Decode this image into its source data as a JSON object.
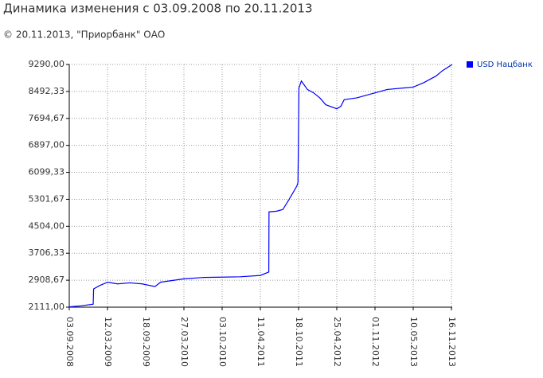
{
  "chart_data": {
    "type": "line",
    "title": "Динамика изменения с 03.09.2008 по 20.11.2013",
    "subtitle": "© 20.11.2013, \"Приорбанк\" ОАО",
    "x": [
      "03.09.2008",
      "01.11.2008",
      "31.12.2008",
      "02.01.2009",
      "01.02.2009",
      "12.03.2009",
      "01.05.2009",
      "01.07.2009",
      "01.09.2009",
      "03.11.2009",
      "01.12.2009",
      "27.03.2010",
      "01.07.2010",
      "03.10.2010",
      "01.01.2011",
      "11.04.2011",
      "23.05.2011",
      "24.05.2011",
      "01.07.2011",
      "01.08.2011",
      "01.09.2011",
      "10.10.2011",
      "15.10.2011",
      "20.10.2011",
      "01.11.2011",
      "01.12.2011",
      "01.01.2012",
      "01.02.2012",
      "01.03.2012",
      "25.04.2012",
      "15.05.2012",
      "01.06.2012",
      "01.08.2012",
      "01.11.2012",
      "01.01.2013",
      "10.05.2013",
      "01.07.2013",
      "01.09.2013",
      "01.10.2013",
      "20.11.2013"
    ],
    "series": [
      {
        "name": "USD Нацбанк",
        "color": "#0000ff",
        "values": [
          2120,
          2150,
          2200,
          2650,
          2750,
          2850,
          2800,
          2830,
          2800,
          2720,
          2850,
          2950,
          2990,
          3000,
          3010,
          3050,
          3150,
          4930,
          4950,
          5000,
          5300,
          5700,
          5800,
          8600,
          8800,
          8550,
          8450,
          8300,
          8100,
          7980,
          8050,
          8250,
          8300,
          8450,
          8550,
          8620,
          8750,
          8950,
          9100,
          9290
        ]
      }
    ],
    "xlim": [
      "03.09.2008",
      "20.11.2013"
    ],
    "xticks": [
      "03.09.2008",
      "12.03.2009",
      "18.09.2009",
      "27.03.2010",
      "03.10.2010",
      "11.04.2011",
      "18.10.2011",
      "25.04.2012",
      "01.11.2012",
      "10.05.2013",
      "16.11.2013"
    ],
    "ylim": [
      2111,
      9290
    ],
    "yticks": [
      {
        "value": 2111,
        "label": "2111,00"
      },
      {
        "value": 2908.67,
        "label": "2908,67"
      },
      {
        "value": 3706.33,
        "label": "3706,33"
      },
      {
        "value": 4504,
        "label": "4504,00"
      },
      {
        "value": 5301.67,
        "label": "5301,67"
      },
      {
        "value": 6099.33,
        "label": "6099,33"
      },
      {
        "value": 6897,
        "label": "6897,00"
      },
      {
        "value": 7694.67,
        "label": "7694,67"
      },
      {
        "value": 8492.33,
        "label": "8492,33"
      },
      {
        "value": 9290,
        "label": "9290,00"
      }
    ],
    "grid": true,
    "legend": "right"
  }
}
